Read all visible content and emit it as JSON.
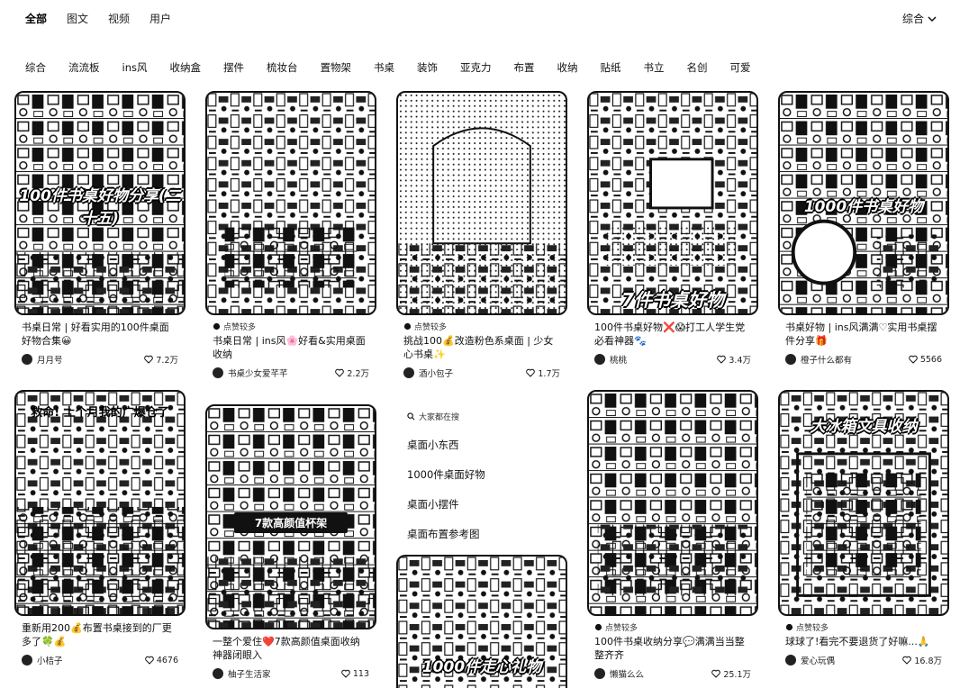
{
  "tabs": [
    {
      "label": "全部",
      "active": true
    },
    {
      "label": "图文",
      "active": false
    },
    {
      "label": "视频",
      "active": false
    },
    {
      "label": "用户",
      "active": false
    }
  ],
  "sort": {
    "label": "综合"
  },
  "chips": [
    "综合",
    "流流板",
    "ins风",
    "收纳盒",
    "摆件",
    "梳妆台",
    "置物架",
    "书桌",
    "装饰",
    "亚克力",
    "布置",
    "收纳",
    "贴纸",
    "书立",
    "名创",
    "可爱"
  ],
  "cards": [
    {
      "overlay": "100件书桌好物分享(二十五)",
      "feature": "",
      "title": "书桌日常 | 好看实用的100件桌面好物合集😀",
      "author": "月月号",
      "likes": "7.2万"
    },
    {
      "overlay": "",
      "feature": "点赞较多",
      "title": "书桌日常 | ins风🌸好看&实用桌面收纳",
      "author": "书桌少女爱芊芊",
      "likes": "2.2万"
    },
    {
      "overlay": "",
      "feature": "点赞较多",
      "title": "挑战100💰改造粉色系桌面 | 少女心书桌✨",
      "author": "酒小包子",
      "likes": "1.7万"
    },
    {
      "overlay": "7件书桌好物",
      "feature": "",
      "title": "100件书桌好物❌😱打工人学生党必看神器🐾",
      "author": "桃桃",
      "likes": "3.4万"
    },
    {
      "overlay": "1000件书桌好物",
      "feature": "",
      "title": "书桌好物 | ins风满满♡实用书桌摆件分享🎁",
      "author": "橙子什么都有",
      "likes": "5566"
    },
    {
      "overlay": "救命! 上个月我的广爆仓了",
      "feature": "",
      "title": "重新用200💰布置书桌接到的厂更多了🍀💰",
      "author": "小桔子",
      "likes": "4676"
    },
    {
      "overlay": "7款高颜值杯架",
      "feature": "",
      "title": "一整个爱住❤️7款高颜值桌面收纳神器闭眼入",
      "author": "柚子生活家",
      "likes": "113"
    },
    {
      "overlay": "1000件走心礼物",
      "feature": "",
      "title": "",
      "author": "",
      "likes": ""
    },
    {
      "overlay": "",
      "feature": "点赞较多",
      "title": "100件书桌收纳分享💬满满当当整整齐齐",
      "author": "懒猫么么",
      "likes": "25.1万"
    },
    {
      "overlay": "大冰箱文具收纳",
      "feature": "点赞较多",
      "title": "球球了!看完不要退货了好嘛...🙏",
      "author": "爱心玩偶",
      "likes": "16.8万"
    }
  ],
  "search_panel": {
    "header": "大家都在搜",
    "queries": [
      "桌面小东西",
      "1000件桌面好物",
      "桌面小摆件",
      "桌面布置参考图"
    ]
  }
}
